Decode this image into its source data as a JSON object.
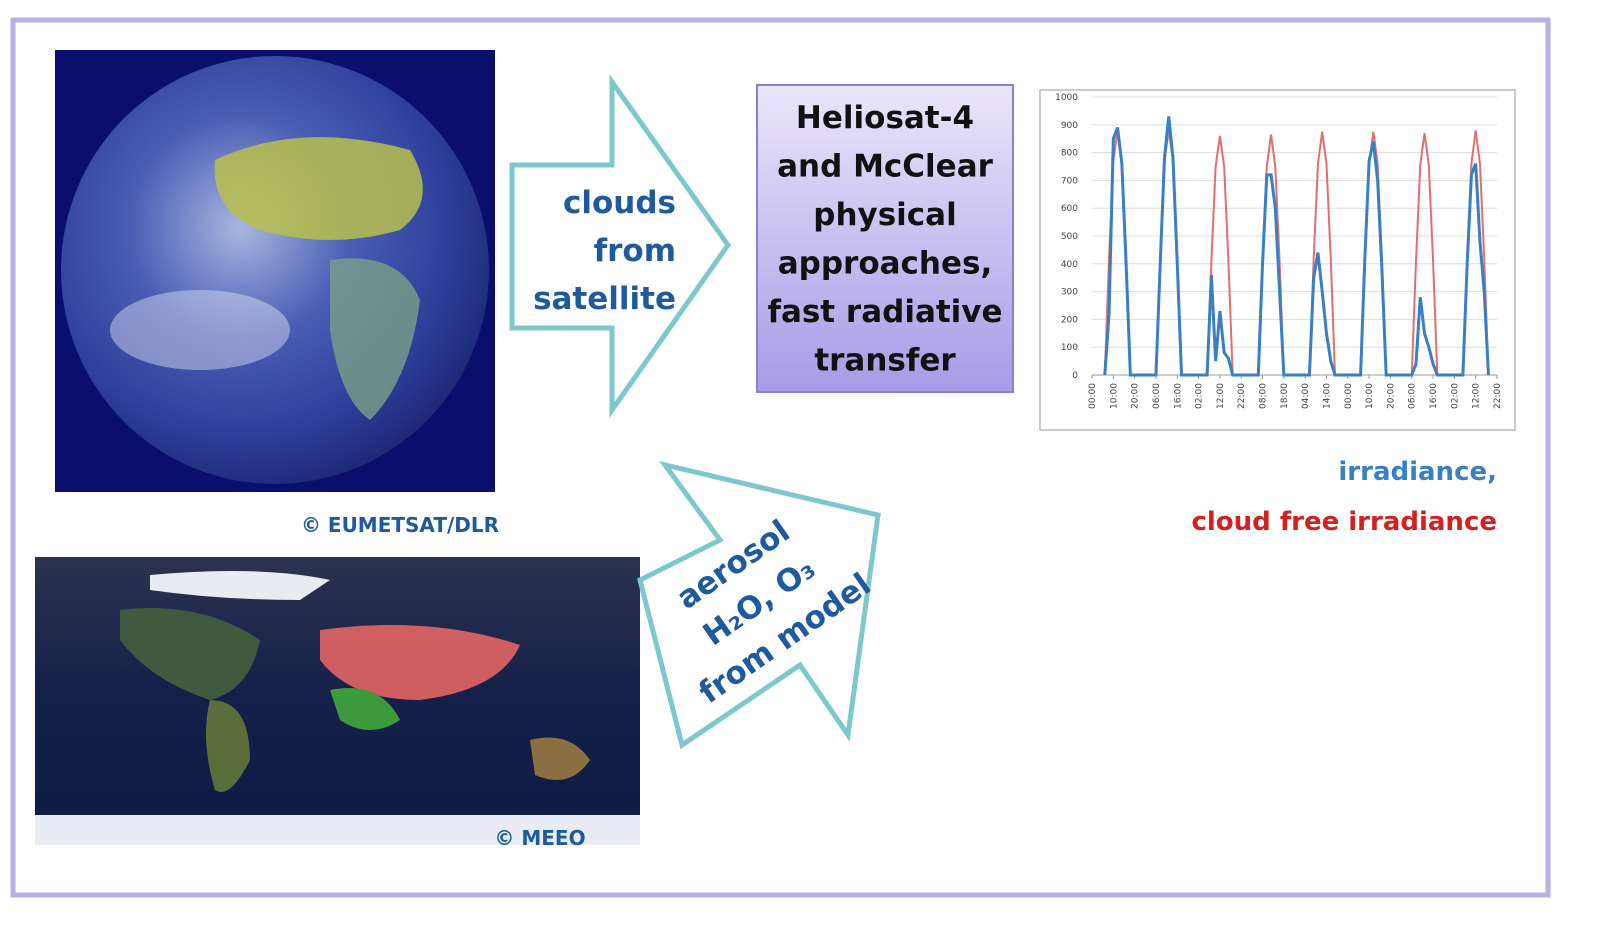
{
  "credits": {
    "satellite": "© EUMETSAT/DLR",
    "model": "© MEEO"
  },
  "arrows": {
    "satellite": [
      "clouds",
      "from",
      "satellite"
    ],
    "model": [
      "aerosol",
      "H₂O, O₃",
      "from model"
    ]
  },
  "process_box": [
    "Heliosat-4",
    "and McClear",
    "physical",
    "approaches,",
    "fast radiative",
    "transfer"
  ],
  "chart": {
    "type": "line",
    "xlim": [
      0,
      190
    ],
    "ylim": [
      0,
      1000
    ],
    "yticks": [
      0,
      100,
      200,
      300,
      400,
      500,
      600,
      700,
      800,
      900,
      1000
    ],
    "xticks": [
      {
        "value": 0,
        "label": "00:00"
      },
      {
        "value": 10,
        "label": "10:00"
      },
      {
        "value": 20,
        "label": "20:00"
      },
      {
        "value": 30,
        "label": "06:00"
      },
      {
        "value": 40,
        "label": "16:00"
      },
      {
        "value": 50,
        "label": "02:00"
      },
      {
        "value": 60,
        "label": "12:00"
      },
      {
        "value": 70,
        "label": "22:00"
      },
      {
        "value": 80,
        "label": "08:00"
      },
      {
        "value": 90,
        "label": "18:00"
      },
      {
        "value": 100,
        "label": "04:00"
      },
      {
        "value": 110,
        "label": "14:00"
      },
      {
        "value": 120,
        "label": "00:00"
      },
      {
        "value": 130,
        "label": "10:00"
      },
      {
        "value": 140,
        "label": "20:00"
      },
      {
        "value": 150,
        "label": "06:00"
      },
      {
        "value": 160,
        "label": "16:00"
      },
      {
        "value": 170,
        "label": "02:00"
      },
      {
        "value": 180,
        "label": "12:00"
      },
      {
        "value": 190,
        "label": "22:00"
      }
    ],
    "x": [
      6,
      8,
      10,
      12,
      14,
      16,
      18,
      30,
      32,
      34,
      36,
      38,
      40,
      42,
      54,
      56,
      58,
      60,
      62,
      64,
      66,
      78,
      80,
      82,
      84,
      86,
      88,
      90,
      102,
      104,
      106,
      108,
      110,
      112,
      114,
      126,
      128,
      130,
      132,
      134,
      136,
      138,
      150,
      152,
      154,
      156,
      158,
      160,
      162,
      174,
      176,
      178,
      180,
      182,
      184,
      186
    ],
    "series": [
      {
        "name": "cloud free irradiance",
        "color": "#e07070",
        "values": [
          0,
          420,
          770,
          880,
          770,
          420,
          0,
          0,
          420,
          770,
          880,
          770,
          420,
          0,
          0,
          410,
          750,
          860,
          750,
          410,
          0,
          0,
          410,
          750,
          865,
          750,
          410,
          0,
          0,
          420,
          760,
          875,
          760,
          420,
          0,
          0,
          420,
          760,
          875,
          760,
          420,
          0,
          0,
          410,
          755,
          870,
          755,
          410,
          0,
          0,
          420,
          760,
          880,
          760,
          420,
          0
        ]
      },
      {
        "name": "irradiance,",
        "color": "#3a7fc4",
        "values": [
          0,
          220,
          850,
          890,
          760,
          400,
          0,
          0,
          400,
          780,
          930,
          780,
          400,
          0,
          0,
          360,
          50,
          230,
          80,
          60,
          0,
          0,
          400,
          720,
          720,
          600,
          300,
          0,
          0,
          350,
          440,
          300,
          150,
          50,
          0,
          0,
          420,
          770,
          840,
          700,
          380,
          0,
          0,
          40,
          280,
          150,
          100,
          40,
          0,
          0,
          400,
          720,
          760,
          480,
          300,
          0
        ]
      }
    ]
  }
}
